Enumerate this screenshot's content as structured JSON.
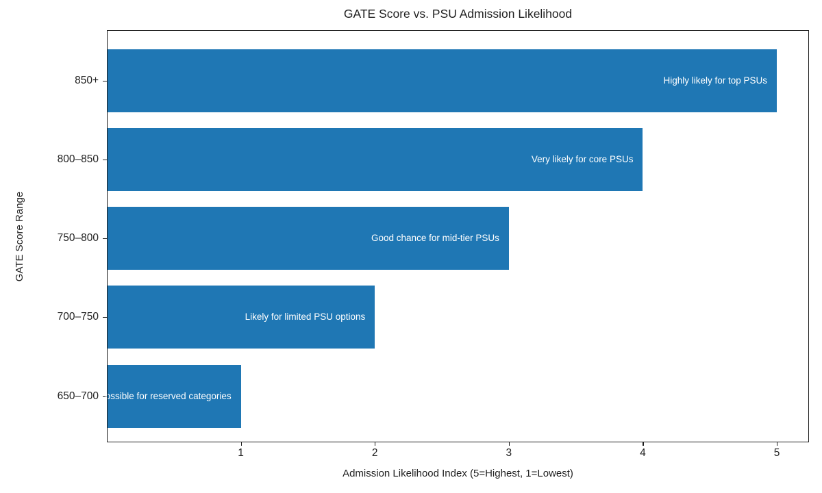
{
  "chart_data": {
    "type": "bar",
    "orientation": "horizontal",
    "title": "GATE Score vs. PSU Admission Likelihood",
    "xlabel": "Admission Likelihood Index (5=Highest, 1=Lowest)",
    "ylabel": "GATE Score Range",
    "categories": [
      "850+",
      "800–850",
      "750–800",
      "700–750",
      "650–700"
    ],
    "values": [
      5,
      4,
      3,
      2,
      1
    ],
    "bar_labels": [
      "Highly likely for top PSUs",
      "Very likely for core PSUs",
      "Good chance for mid-tier PSUs",
      "Likely for limited PSU options",
      "Possible for reserved categories"
    ],
    "xticks": [
      "1",
      "2",
      "3",
      "4",
      "5"
    ],
    "xlim": [
      0,
      5.24
    ],
    "grid": false,
    "legend": "none",
    "bar_color": "#1f77b4",
    "bar_label_color": "#ffffff",
    "text_color": "#212121",
    "background_color": "#ffffff",
    "note_visible_clipping": "last bar label is clipped at the left plot edge, showing 'le for reserved categories'"
  }
}
